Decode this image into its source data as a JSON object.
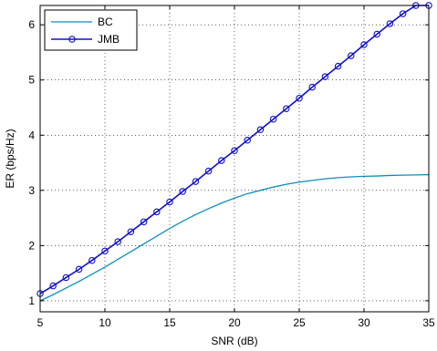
{
  "chart_data": {
    "type": "line",
    "title": "",
    "xlabel": "SNR (dB)",
    "ylabel": "ER (bps/Hz)",
    "xlim": [
      5,
      35
    ],
    "ylim": [
      0.8,
      6.35
    ],
    "xticks": [
      5,
      10,
      15,
      20,
      25,
      30,
      35
    ],
    "yticks": [
      1,
      2,
      3,
      4,
      5,
      6
    ],
    "grid": "dotted",
    "legend_position": "top-left",
    "series": [
      {
        "name": "BC",
        "color": "#0b8fbd",
        "marker": "none",
        "x": [
          5,
          6,
          7,
          8,
          9,
          10,
          11,
          12,
          13,
          14,
          15,
          16,
          17,
          18,
          19,
          20,
          21,
          22,
          23,
          24,
          25,
          26,
          27,
          28,
          29,
          30,
          31,
          32,
          33,
          34,
          35
        ],
        "y": [
          1.0,
          1.11,
          1.23,
          1.35,
          1.48,
          1.61,
          1.75,
          1.89,
          2.03,
          2.17,
          2.31,
          2.44,
          2.56,
          2.67,
          2.77,
          2.86,
          2.94,
          3.0,
          3.06,
          3.11,
          3.15,
          3.18,
          3.21,
          3.23,
          3.245,
          3.255,
          3.26,
          3.27,
          3.275,
          3.28,
          3.285
        ]
      },
      {
        "name": "JMB",
        "color": "#1010c8",
        "marker": "circle",
        "x": [
          5,
          6,
          7,
          8,
          9,
          10,
          11,
          12,
          13,
          14,
          15,
          16,
          17,
          18,
          19,
          20,
          21,
          22,
          23,
          24,
          25,
          26,
          27,
          28,
          29,
          30,
          31,
          32,
          33,
          34,
          35
        ],
        "y": [
          1.13,
          1.27,
          1.42,
          1.57,
          1.73,
          1.9,
          2.07,
          2.25,
          2.43,
          2.61,
          2.79,
          2.98,
          3.16,
          3.35,
          3.54,
          3.72,
          3.91,
          4.1,
          4.29,
          4.48,
          4.67,
          4.87,
          5.06,
          5.25,
          5.44,
          5.64,
          5.83,
          6.02,
          6.2,
          6.39,
          6.58
        ]
      }
    ]
  }
}
